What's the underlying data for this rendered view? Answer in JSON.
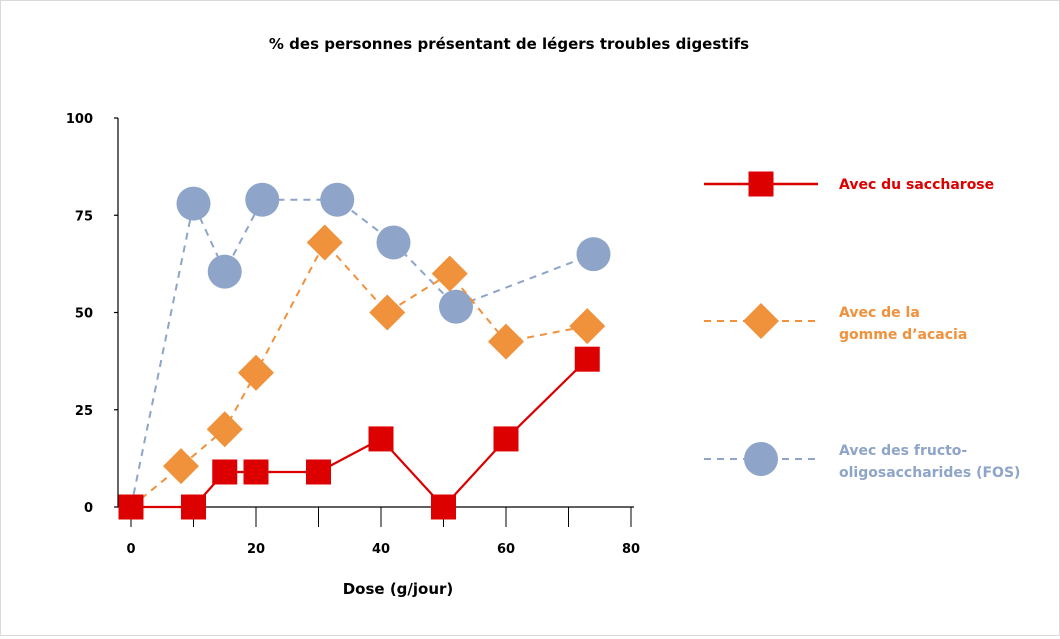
{
  "chart_data": {
    "type": "line",
    "title": "% des personnes présentant de légers troubles digestifs",
    "xlabel": "Dose (g/jour)",
    "ylabel": "",
    "xlim": [
      0,
      80
    ],
    "ylim": [
      0,
      100
    ],
    "x_ticks": [
      0,
      20,
      40,
      60,
      80
    ],
    "y_ticks": [
      0,
      25,
      50,
      75,
      100
    ],
    "grid": false,
    "legend_position": "right",
    "series": [
      {
        "name": "Avec du saccharose",
        "legend_lines": [
          "Avec du saccharose"
        ],
        "color": "#dc0000",
        "line_style": "solid",
        "marker": "square",
        "x": [
          0,
          10,
          15,
          20,
          30,
          40,
          50,
          60,
          73
        ],
        "y": [
          0,
          0,
          9,
          9,
          9,
          17.5,
          0,
          17.5,
          38
        ]
      },
      {
        "name": "Avec de la gomme d’acacia",
        "legend_lines": [
          "Avec de la",
          "gomme d’acacia"
        ],
        "color": "#f0913c",
        "line_style": "dashed",
        "marker": "diamond",
        "x": [
          0,
          8,
          15,
          20,
          31,
          41,
          51,
          60,
          73
        ],
        "y": [
          0,
          10.5,
          20,
          34.5,
          68,
          50,
          60,
          42.5,
          46.5
        ]
      },
      {
        "name": "Avec des fructo-oligosaccharides (FOS)",
        "legend_lines": [
          "Avec des fructo-",
          "oligosaccharides (FOS)"
        ],
        "color": "#8ea4c8",
        "line_style": "dashed",
        "marker": "circle",
        "x": [
          0,
          10,
          15,
          21,
          33,
          42,
          52,
          74
        ],
        "y": [
          0,
          78,
          60.5,
          79,
          79,
          68,
          51.5,
          65
        ]
      }
    ]
  }
}
